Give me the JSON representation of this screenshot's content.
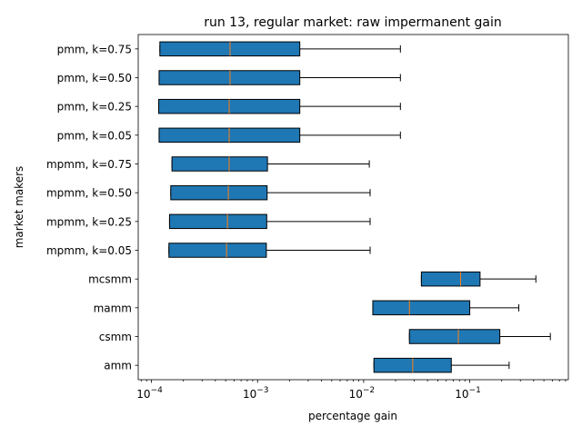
{
  "chart_data": {
    "type": "boxplot",
    "orientation": "horizontal",
    "title": "run 13, regular market: raw impermanent gain",
    "xlabel": "percentage gain",
    "ylabel": "market makers",
    "xscale": "log",
    "xlim": [
      7.5e-05,
      0.85
    ],
    "xticks": [
      {
        "value": 0.0001,
        "base": "10",
        "exp": "−4"
      },
      {
        "value": 0.001,
        "base": "10",
        "exp": "−3"
      },
      {
        "value": 0.01,
        "base": "10",
        "exp": "−2"
      },
      {
        "value": 0.1,
        "base": "10",
        "exp": "−1"
      }
    ],
    "grid": false,
    "box_color": "#1f77b4",
    "median_color": "#ff7f0e",
    "categories": [
      "amm",
      "csmm",
      "mamm",
      "mcsmm",
      "mpmm, k=0.05",
      "mpmm, k=0.25",
      "mpmm, k=0.50",
      "mpmm, k=0.75",
      "pmm, k=0.05",
      "pmm, k=0.25",
      "pmm, k=0.50",
      "pmm, k=0.75"
    ],
    "boxes": [
      {
        "label": "amm",
        "whislo": 0.0125,
        "q1": 0.0125,
        "median": 0.029,
        "q3": 0.067,
        "whishi": 0.235
      },
      {
        "label": "csmm",
        "whislo": 0.027,
        "q1": 0.027,
        "median": 0.078,
        "q3": 0.192,
        "whishi": 0.575
      },
      {
        "label": "mamm",
        "whislo": 0.0122,
        "q1": 0.0122,
        "median": 0.027,
        "q3": 0.1,
        "whishi": 0.29
      },
      {
        "label": "mcsmm",
        "whislo": 0.035,
        "q1": 0.035,
        "median": 0.082,
        "q3": 0.125,
        "whishi": 0.42
      },
      {
        "label": "mpmm, k=0.05",
        "whislo": 0.000146,
        "q1": 0.000146,
        "median": 0.00051,
        "q3": 0.00121,
        "whishi": 0.0115
      },
      {
        "label": "mpmm, k=0.25",
        "whislo": 0.000148,
        "q1": 0.000148,
        "median": 0.00052,
        "q3": 0.00122,
        "whishi": 0.0115
      },
      {
        "label": "mpmm, k=0.50",
        "whislo": 0.000152,
        "q1": 0.000152,
        "median": 0.00053,
        "q3": 0.00123,
        "whishi": 0.0115
      },
      {
        "label": "mpmm, k=0.75",
        "whislo": 0.000156,
        "q1": 0.000156,
        "median": 0.00054,
        "q3": 0.00124,
        "whishi": 0.0113
      },
      {
        "label": "pmm, k=0.05",
        "whislo": 0.000118,
        "q1": 0.000118,
        "median": 0.00054,
        "q3": 0.0025,
        "whishi": 0.0222
      },
      {
        "label": "pmm, k=0.25",
        "whislo": 0.000117,
        "q1": 0.000117,
        "median": 0.00054,
        "q3": 0.0025,
        "whishi": 0.0222
      },
      {
        "label": "pmm, k=0.50",
        "whislo": 0.000118,
        "q1": 0.000118,
        "median": 0.00055,
        "q3": 0.0025,
        "whishi": 0.0222
      },
      {
        "label": "pmm, k=0.75",
        "whislo": 0.00012,
        "q1": 0.00012,
        "median": 0.00055,
        "q3": 0.0025,
        "whishi": 0.0222
      }
    ]
  }
}
